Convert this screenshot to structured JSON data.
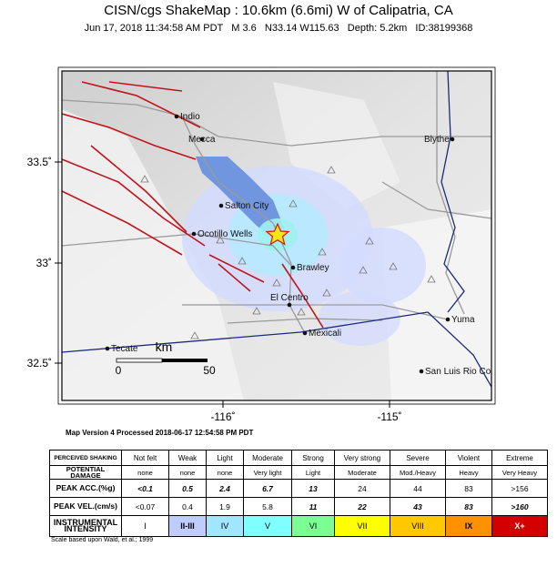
{
  "header": {
    "title": "CISN/cgs ShakeMap : 10.6km (6.6mi) W of Calipatria, CA",
    "subtitle": "Jun 17, 2018 11:34:58 AM PDT   M 3.6   N33.14 W115.63   Depth: 5.2km   ID:38199368"
  },
  "map": {
    "cities": [
      "Indio",
      "Mecca",
      "Blythe",
      "Salton City",
      "Ocotillo Wells",
      "Brawley",
      "El Centro",
      "Mexicali",
      "Yuma",
      "Tecate",
      "San Luis Rio Co"
    ],
    "lat_labels": [
      "33.5˚",
      "33˚",
      "32.5˚"
    ],
    "lon_labels": [
      "-116˚",
      "-115˚"
    ],
    "scale": {
      "unit": "km",
      "start": "0",
      "end": "50"
    }
  },
  "map_version": "Map Version 4 Processed 2018-06-17 12:54:58 PM PDT",
  "legend": {
    "columns": [
      "PERCEIVED SHAKING",
      "Not felt",
      "Weak",
      "Light",
      "Moderate",
      "Strong",
      "Very strong",
      "Severe",
      "Violent",
      "Extreme"
    ],
    "rows": [
      {
        "label": "POTENTIAL DAMAGE",
        "cells": [
          "none",
          "none",
          "none",
          "Very light",
          "Light",
          "Moderate",
          "Mod./Heavy",
          "Heavy",
          "Very Heavy"
        ]
      },
      {
        "label": "PEAK ACC.(%g)",
        "cells": [
          "<0.1",
          "0.5",
          "2.4",
          "6.7",
          "13",
          "24",
          "44",
          "83",
          ">156"
        ]
      },
      {
        "label": "PEAK VEL.(cm/s)",
        "cells": [
          "<0.07",
          "0.4",
          "1.9",
          "5.8",
          "11",
          "22",
          "43",
          "83",
          ">160"
        ]
      },
      {
        "label": "INSTRUMENTAL INTENSITY",
        "cells": [
          "I",
          "II-III",
          "IV",
          "V",
          "VI",
          "VII",
          "VIII",
          "IX",
          "X+"
        ]
      }
    ]
  },
  "footnote": "Scale based upon Wald, et al.; 1999"
}
